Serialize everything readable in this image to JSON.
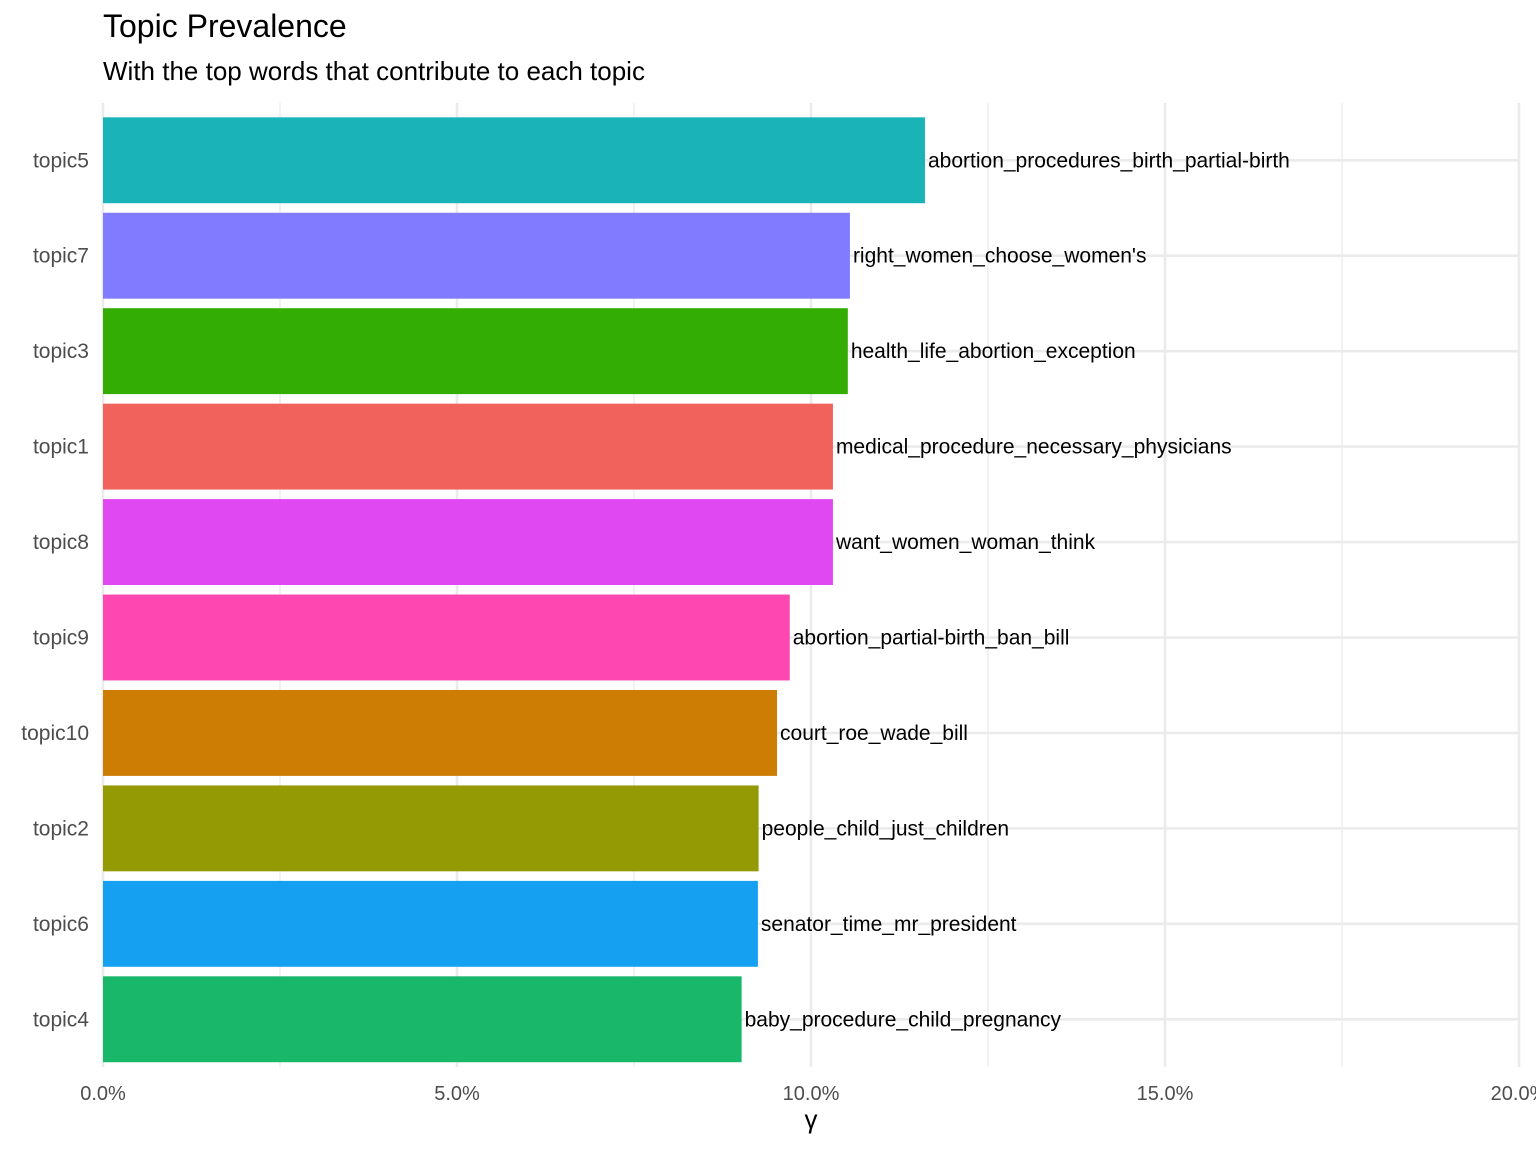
{
  "chart_data": {
    "type": "bar",
    "orientation": "horizontal",
    "title": "Topic Prevalence",
    "subtitle": "With the top words that contribute to each topic",
    "xlabel": "γ",
    "ylabel": "",
    "xlim": [
      0,
      0.2
    ],
    "x_ticks": [
      {
        "value": 0.0,
        "label": "0.0%"
      },
      {
        "value": 0.05,
        "label": "5.0%"
      },
      {
        "value": 0.1,
        "label": "10.0%"
      },
      {
        "value": 0.15,
        "label": "15.0%"
      },
      {
        "value": 0.2,
        "label": "20.0%"
      }
    ],
    "grid": true,
    "legend": "none",
    "bars": [
      {
        "category": "topic5",
        "value": 0.1161,
        "terms": "abortion_procedures_birth_partial-birth",
        "color": "#19B3B8"
      },
      {
        "category": "topic7",
        "value": 0.1055,
        "terms": "right_women_choose_women's",
        "color": "#817BFF"
      },
      {
        "category": "topic3",
        "value": 0.1052,
        "terms": "health_life_abortion_exception",
        "color": "#33AD03"
      },
      {
        "category": "topic1",
        "value": 0.1031,
        "terms": "medical_procedure_necessary_physicians",
        "color": "#F2625C"
      },
      {
        "category": "topic8",
        "value": 0.1031,
        "terms": "want_women_woman_think",
        "color": "#E048F1"
      },
      {
        "category": "topic9",
        "value": 0.097,
        "terms": "abortion_partial-birth_ban_bill",
        "color": "#FE47B1"
      },
      {
        "category": "topic10",
        "value": 0.0952,
        "terms": "court_roe_wade_bill",
        "color": "#CD7C04"
      },
      {
        "category": "topic2",
        "value": 0.0926,
        "terms": "people_child_just_children",
        "color": "#949A03"
      },
      {
        "category": "topic6",
        "value": 0.0925,
        "terms": "senator_time_mr_president",
        "color": "#16A0F1"
      },
      {
        "category": "topic4",
        "value": 0.0902,
        "terms": "baby_procedure_child_pregnancy",
        "color": "#18B76A"
      }
    ]
  }
}
